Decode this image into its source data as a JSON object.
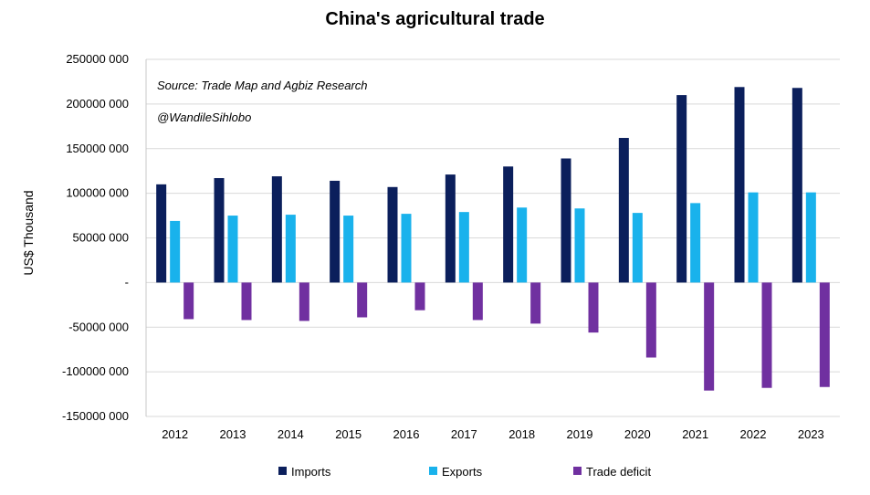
{
  "chart_data": {
    "type": "bar",
    "title": "China's agricultural trade",
    "ylabel": "US$ Thousand",
    "xlabel": "",
    "categories": [
      "2012",
      "2013",
      "2014",
      "2015",
      "2016",
      "2017",
      "2018",
      "2019",
      "2020",
      "2021",
      "2022",
      "2023"
    ],
    "series": [
      {
        "name": "Imports",
        "color": "#0b1f5c",
        "values": [
          110000000,
          117000000,
          119000000,
          114000000,
          107000000,
          121000000,
          130000000,
          139000000,
          162000000,
          210000000,
          219000000,
          218000000
        ]
      },
      {
        "name": "Exports",
        "color": "#19b2ec",
        "values": [
          69000000,
          75000000,
          76000000,
          75000000,
          77000000,
          79000000,
          84000000,
          83000000,
          78000000,
          89000000,
          101000000,
          101000000
        ]
      },
      {
        "name": "Trade deficit",
        "color": "#7030a0",
        "values": [
          -41000000,
          -42000000,
          -43000000,
          -39000000,
          -31000000,
          -42000000,
          -46000000,
          -56000000,
          -84000000,
          -121000000,
          -118000000,
          -117000000
        ]
      }
    ],
    "ylim": [
      -150000000,
      250000000
    ],
    "yticks": [
      {
        "value": 250000000,
        "label": "250000 000"
      },
      {
        "value": 200000000,
        "label": "200000 000"
      },
      {
        "value": 150000000,
        "label": "150000 000"
      },
      {
        "value": 100000000,
        "label": "100000 000"
      },
      {
        "value": 50000000,
        "label": "50000 000"
      },
      {
        "value": 0,
        "label": "-"
      },
      {
        "value": -50000000,
        "label": "-50000 000"
      },
      {
        "value": -100000000,
        "label": "-100000 000"
      },
      {
        "value": -150000000,
        "label": "-150000 000"
      }
    ],
    "grid": true,
    "legend_position": "bottom",
    "annotations": [
      "Source: Trade Map and Agbiz Research",
      "@WandileSihlobo"
    ]
  }
}
